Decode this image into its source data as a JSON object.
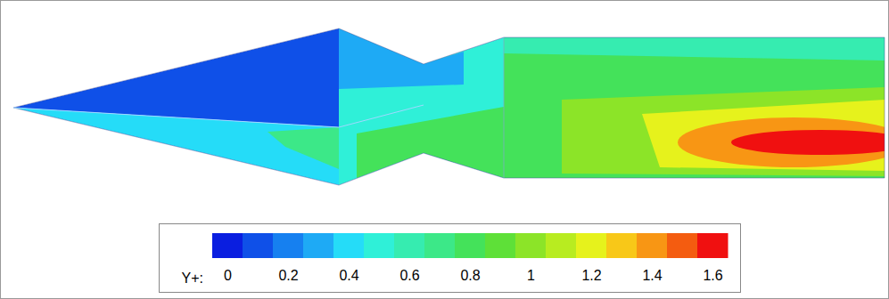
{
  "chart_data": {
    "type": "contour",
    "regions": [
      0.1,
      0.4,
      0.7,
      0.5,
      0.3,
      0.8,
      0.8,
      0.6,
      1.0,
      1.2,
      1.4,
      1.6
    ],
    "colorbar": {
      "title": "Y+:",
      "range": [
        0,
        1.6
      ],
      "levels": [
        0,
        0.1,
        0.2,
        0.3,
        0.4,
        0.5,
        0.6,
        0.7,
        0.8,
        0.9,
        1,
        1.1,
        1.2,
        1.3,
        1.4,
        1.5,
        1.6
      ],
      "colors": [
        "#0a1ee0",
        "#0f50e8",
        "#1680f0",
        "#1eaaf5",
        "#25dcf8",
        "#2ff0d8",
        "#36ecb0",
        "#3ce888",
        "#44e25a",
        "#5ee038",
        "#8ce428",
        "#b8ec20",
        "#e6f21c",
        "#f8c818",
        "#f89614",
        "#f45c10",
        "#f01010"
      ],
      "ticks": [
        0,
        0.2,
        0.4,
        0.6,
        0.8,
        1,
        1.2,
        1.4,
        1.6
      ]
    }
  }
}
